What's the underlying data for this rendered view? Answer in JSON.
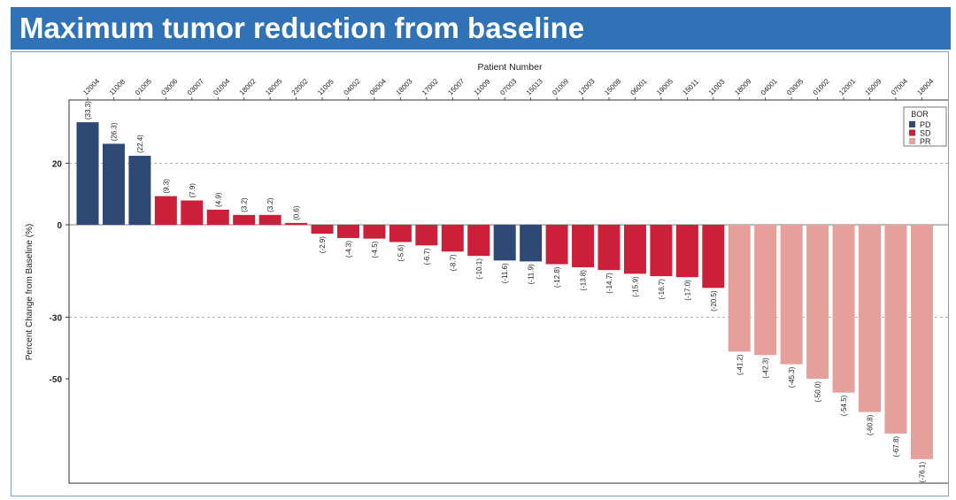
{
  "header": {
    "title": "Maximum tumor reduction from baseline"
  },
  "chart_data": {
    "type": "bar",
    "xlabel": "Patient Number",
    "ylabel": "Percent Change from Baseline (%)",
    "ylim": [
      -84,
      40
    ],
    "y_ticks": [
      20,
      0,
      -30,
      -50
    ],
    "gridlines": [
      20,
      -30
    ],
    "grid": "dashed at selected ticks",
    "legend_position": "top-right",
    "legend_title": "BOR",
    "groups": [
      {
        "name": "PD",
        "color": "#2e4a74"
      },
      {
        "name": "SD",
        "color": "#cc1f3a"
      },
      {
        "name": "PR",
        "color": "#e6a09c"
      }
    ],
    "categories": [
      "12004",
      "11008",
      "01005",
      "03006",
      "03007",
      "01004",
      "18002",
      "18005",
      "22002",
      "11005",
      "04002",
      "06004",
      "18003",
      "17002",
      "15007",
      "11009",
      "07003",
      "15013",
      "01009",
      "12003",
      "15008",
      "06001",
      "19005",
      "15011",
      "11003",
      "18009",
      "04001",
      "03005",
      "01002",
      "12001",
      "15009",
      "07004",
      "18004"
    ],
    "values": [
      33.3,
      26.3,
      22.4,
      9.3,
      7.9,
      4.9,
      3.2,
      3.2,
      0.6,
      -2.9,
      -4.3,
      -4.5,
      -5.6,
      -6.7,
      -8.7,
      -10.1,
      -11.6,
      -11.9,
      -12.8,
      -13.8,
      -14.7,
      -15.9,
      -16.7,
      -17.0,
      -20.5,
      -41.2,
      -42.3,
      -45.3,
      -50.0,
      -54.5,
      -60.8,
      -67.8,
      -76.1
    ],
    "value_labels": [
      "(33.3)",
      "(26.3)",
      "(22.4)",
      "(9.3)",
      "(7.9)",
      "(4.9)",
      "(3.2)",
      "(3.2)",
      "(0.6)",
      "(-2.9)",
      "(-4.3)",
      "(-4.5)",
      "(-5.6)",
      "(-6.7)",
      "(-8.7)",
      "(-10.1)",
      "(-11.6)",
      "(-11.9)",
      "(-12.8)",
      "(-13.8)",
      "(-14.7)",
      "(-15.9)",
      "(-16.7)",
      "(-17.0)",
      "(-20.5)",
      "(-41.2)",
      "(-42.3)",
      "(-45.3)",
      "(-50.0)",
      "(-54.5)",
      "(-60.8)",
      "(-67.8)",
      "(-76.1)"
    ],
    "bor": [
      "PD",
      "PD",
      "PD",
      "SD",
      "SD",
      "SD",
      "SD",
      "SD",
      "SD",
      "SD",
      "SD",
      "SD",
      "SD",
      "SD",
      "SD",
      "SD",
      "PD",
      "PD",
      "SD",
      "SD",
      "SD",
      "SD",
      "SD",
      "SD",
      "SD",
      "PR",
      "PR",
      "PR",
      "PR",
      "PR",
      "PR",
      "PR",
      "PR"
    ]
  }
}
